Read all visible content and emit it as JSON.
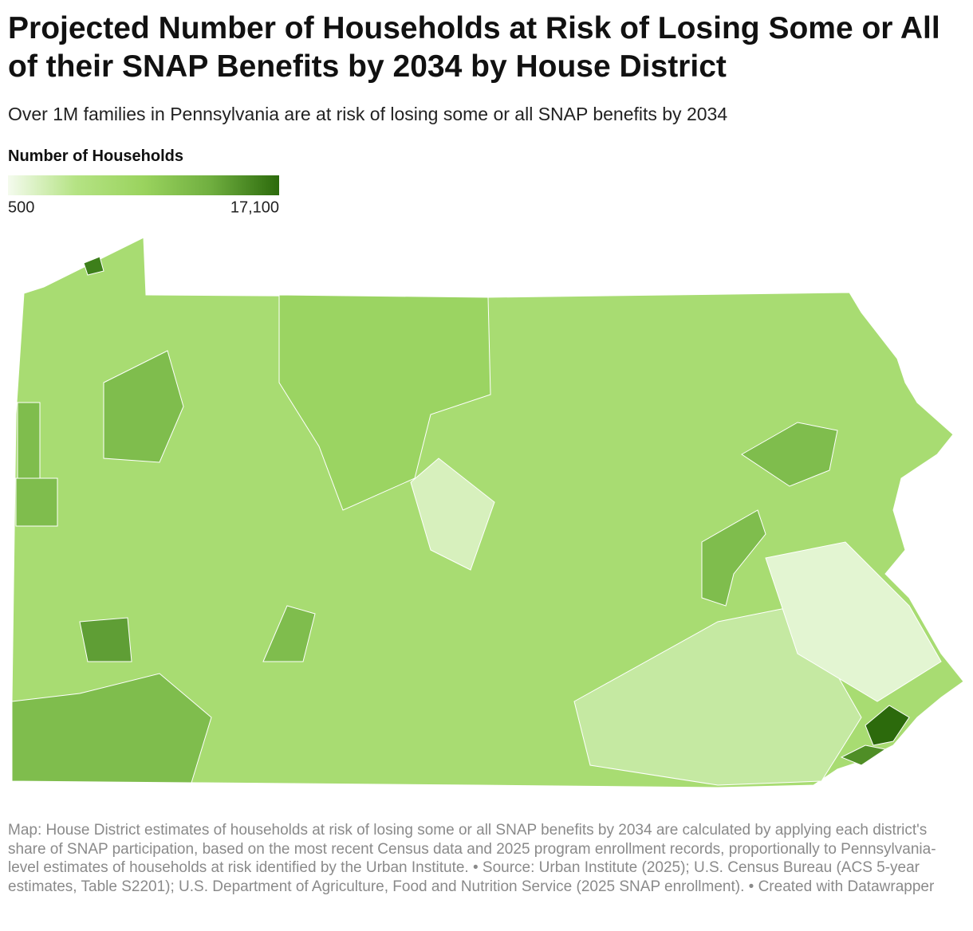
{
  "header": {
    "title": "Projected Number of Households at Risk of Losing Some or All of their SNAP Benefits by 2034 by House District",
    "subtitle": "Over 1M families in Pennsylvania are at risk of losing some or all SNAP benefits by 2034"
  },
  "legend": {
    "title": "Number of Households",
    "min": 500,
    "max": {
      "value": 17100,
      "label": "17,100"
    },
    "colors": [
      "#f4fbee",
      "#b5e384",
      "#9ad35e",
      "#6fae3f",
      "#2c6a0c"
    ]
  },
  "footer": {
    "note": "Map: House District estimates of households at risk of losing some or all SNAP benefits by 2034 are calculated by applying each district's share of SNAP participation, based on the most recent Census data and 2025 program enrollment records, proportionally to Pennsylvania-level estimates of households at risk identified by the Urban Institute. • Source: Urban Institute (2025); U.S. Census Bureau (ACS 5-year estimates, Table S2201); U.S. Department of Agriculture, Food and Nutrition Service (2025 SNAP enrollment). • Created with Datawrapper"
  }
}
